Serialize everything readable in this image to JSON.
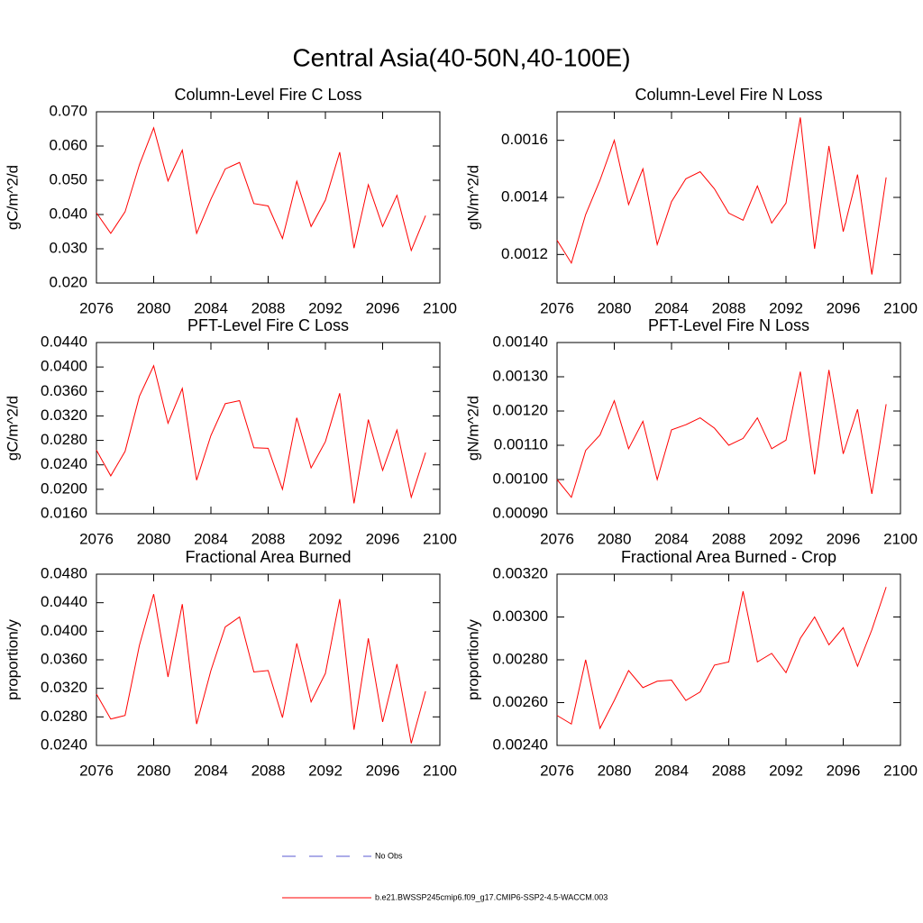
{
  "title": "Central Asia(40-50N,40-100E)",
  "legend": [
    {
      "name": "No Obs",
      "color": "#5a5ad0",
      "dashed": true
    },
    {
      "name": "b.e21.BWSSP245cmip6.f09_g17.CMIP6-SSP2-4.5-WACCM.003",
      "color": "#ff0000",
      "dashed": false
    }
  ],
  "chart_data": [
    {
      "type": "line",
      "title": "Column-Level Fire C Loss",
      "y_label": "gC/m^2/d",
      "color": "#ff0000",
      "x": [
        2076,
        2077,
        2078,
        2079,
        2080,
        2081,
        2082,
        2083,
        2084,
        2085,
        2086,
        2087,
        2088,
        2089,
        2090,
        2091,
        2092,
        2093,
        2094,
        2095,
        2096,
        2097,
        2098,
        2099
      ],
      "values": [
        0.0405,
        0.0345,
        0.0408,
        0.0545,
        0.0653,
        0.0498,
        0.0588,
        0.0345,
        0.0445,
        0.0533,
        0.0552,
        0.0432,
        0.0425,
        0.033,
        0.0497,
        0.0365,
        0.0442,
        0.0582,
        0.0302,
        0.0487,
        0.0365,
        0.0456,
        0.0295,
        0.0397
      ],
      "xlim": [
        2076,
        2100
      ],
      "xticks": [
        2076,
        2080,
        2084,
        2088,
        2092,
        2096,
        2100
      ],
      "ylim": [
        0.02,
        0.07
      ],
      "yticks": [
        {
          "value": 0.02,
          "label": "0.020"
        },
        {
          "value": 0.03,
          "label": "0.030"
        },
        {
          "value": 0.04,
          "label": "0.040"
        },
        {
          "value": 0.05,
          "label": "0.050"
        },
        {
          "value": 0.06,
          "label": "0.060"
        },
        {
          "value": 0.07,
          "label": "0.070"
        }
      ]
    },
    {
      "type": "line",
      "title": "Column-Level Fire N Loss",
      "y_label": "gN/m^2/d",
      "color": "#ff0000",
      "x": [
        2076,
        2077,
        2078,
        2079,
        2080,
        2081,
        2082,
        2083,
        2084,
        2085,
        2086,
        2087,
        2088,
        2089,
        2090,
        2091,
        2092,
        2093,
        2094,
        2095,
        2096,
        2097,
        2098,
        2099
      ],
      "values": [
        0.00125,
        0.00117,
        0.00134,
        0.00146,
        0.0016,
        0.001375,
        0.0015,
        0.001235,
        0.001385,
        0.001465,
        0.00149,
        0.00143,
        0.001345,
        0.00132,
        0.00144,
        0.00131,
        0.00138,
        0.00168,
        0.00122,
        0.00158,
        0.00128,
        0.00148,
        0.00113,
        0.00147
      ],
      "xlim": [
        2076,
        2100
      ],
      "xticks": [
        2076,
        2080,
        2084,
        2088,
        2092,
        2096,
        2100
      ],
      "ylim": [
        0.0011,
        0.0017
      ],
      "yticks": [
        0.0012,
        0.0014,
        0.0016
      ]
    },
    {
      "type": "line",
      "title": "PFT-Level Fire C Loss",
      "y_label": "gC/m^2/d",
      "color": "#ff0000",
      "x": [
        2076,
        2077,
        2078,
        2079,
        2080,
        2081,
        2082,
        2083,
        2084,
        2085,
        2086,
        2087,
        2088,
        2089,
        2090,
        2091,
        2092,
        2093,
        2094,
        2095,
        2096,
        2097,
        2098,
        2099
      ],
      "values": [
        0.0264,
        0.0222,
        0.0262,
        0.0352,
        0.0402,
        0.0308,
        0.0365,
        0.0215,
        0.0288,
        0.034,
        0.0345,
        0.0268,
        0.0267,
        0.02,
        0.0317,
        0.0235,
        0.0278,
        0.0357,
        0.0177,
        0.0314,
        0.0231,
        0.0297,
        0.0187,
        0.026
      ],
      "xlim": [
        2076,
        2100
      ],
      "xticks": [
        2076,
        2080,
        2084,
        2088,
        2092,
        2096,
        2100
      ],
      "ylim": [
        0.016,
        0.044
      ],
      "yticks": [
        {
          "value": 0.016,
          "label": "0.0160"
        },
        {
          "value": 0.02,
          "label": "0.0200"
        },
        {
          "value": 0.024,
          "label": "0.0240"
        },
        {
          "value": 0.028,
          "label": "0.0280"
        },
        {
          "value": 0.032,
          "label": "0.0320"
        },
        {
          "value": 0.036,
          "label": "0.0360"
        },
        {
          "value": 0.04,
          "label": "0.0400"
        },
        {
          "value": 0.044,
          "label": "0.0440"
        }
      ]
    },
    {
      "type": "line",
      "title": "PFT-Level Fire N Loss",
      "y_label": "gN/m^2/d",
      "color": "#ff0000",
      "x": [
        2076,
        2077,
        2078,
        2079,
        2080,
        2081,
        2082,
        2083,
        2084,
        2085,
        2086,
        2087,
        2088,
        2089,
        2090,
        2091,
        2092,
        2093,
        2094,
        2095,
        2096,
        2097,
        2098,
        2099
      ],
      "values": [
        0.001,
        0.000948,
        0.001085,
        0.00113,
        0.00123,
        0.00109,
        0.00117,
        0.001,
        0.001145,
        0.00116,
        0.00118,
        0.00115,
        0.0011,
        0.00112,
        0.00118,
        0.00109,
        0.001115,
        0.001315,
        0.001015,
        0.00132,
        0.001075,
        0.001205,
        0.000958,
        0.00122
      ],
      "xlim": [
        2076,
        2100
      ],
      "xticks": [
        2076,
        2080,
        2084,
        2088,
        2092,
        2096,
        2100
      ],
      "ylim": [
        0.0009,
        0.0014
      ],
      "yticks": [
        {
          "value": 0.0009,
          "label": "0.00090"
        },
        {
          "value": 0.001,
          "label": "0.00100"
        },
        {
          "value": 0.0011,
          "label": "0.00110"
        },
        {
          "value": 0.0012,
          "label": "0.00120"
        },
        {
          "value": 0.0013,
          "label": "0.00130"
        },
        {
          "value": 0.0014,
          "label": "0.00140"
        }
      ]
    },
    {
      "type": "line",
      "title": "Fractional Area Burned",
      "y_label": "proportion/y",
      "color": "#ff0000",
      "x": [
        2076,
        2077,
        2078,
        2079,
        2080,
        2081,
        2082,
        2083,
        2084,
        2085,
        2086,
        2087,
        2088,
        2089,
        2090,
        2091,
        2092,
        2093,
        2094,
        2095,
        2096,
        2097,
        2098,
        2099
      ],
      "values": [
        0.0312,
        0.0277,
        0.0282,
        0.038,
        0.0452,
        0.0336,
        0.0438,
        0.027,
        0.0345,
        0.0406,
        0.042,
        0.0343,
        0.0345,
        0.0279,
        0.0383,
        0.0301,
        0.0341,
        0.0445,
        0.0262,
        0.039,
        0.0273,
        0.0354,
        0.0243,
        0.0316
      ],
      "xlim": [
        2076,
        2100
      ],
      "xticks": [
        2076,
        2080,
        2084,
        2088,
        2092,
        2096,
        2100
      ],
      "ylim": [
        0.024,
        0.048
      ],
      "yticks": [
        {
          "value": 0.024,
          "label": "0.0240"
        },
        {
          "value": 0.028,
          "label": "0.0280"
        },
        {
          "value": 0.032,
          "label": "0.0320"
        },
        {
          "value": 0.036,
          "label": "0.0360"
        },
        {
          "value": 0.04,
          "label": "0.0400"
        },
        {
          "value": 0.044,
          "label": "0.0440"
        },
        {
          "value": 0.048,
          "label": "0.0480"
        }
      ]
    },
    {
      "type": "line",
      "title": "Fractional Area Burned - Crop",
      "y_label": "proportion/y",
      "color": "#ff0000",
      "x": [
        2076,
        2077,
        2078,
        2079,
        2080,
        2081,
        2082,
        2083,
        2084,
        2085,
        2086,
        2087,
        2088,
        2089,
        2090,
        2091,
        2092,
        2093,
        2094,
        2095,
        2096,
        2097,
        2098,
        2099
      ],
      "values": [
        0.00254,
        0.0025,
        0.0028,
        0.00248,
        0.00261,
        0.00275,
        0.00267,
        0.0027,
        0.002705,
        0.00261,
        0.00265,
        0.002775,
        0.00279,
        0.00312,
        0.00279,
        0.00283,
        0.00274,
        0.0029,
        0.003,
        0.00287,
        0.00295,
        0.00277,
        0.00294,
        0.00314
      ],
      "xlim": [
        2076,
        2100
      ],
      "xticks": [
        2076,
        2080,
        2084,
        2088,
        2092,
        2096,
        2100
      ],
      "ylim": [
        0.0024,
        0.0032
      ],
      "yticks": [
        {
          "value": 0.0024,
          "label": "0.00240"
        },
        {
          "value": 0.0026,
          "label": "0.00260"
        },
        {
          "value": 0.0028,
          "label": "0.00280"
        },
        {
          "value": 0.003,
          "label": "0.00300"
        },
        {
          "value": 0.0032,
          "label": "0.00320"
        }
      ]
    }
  ]
}
